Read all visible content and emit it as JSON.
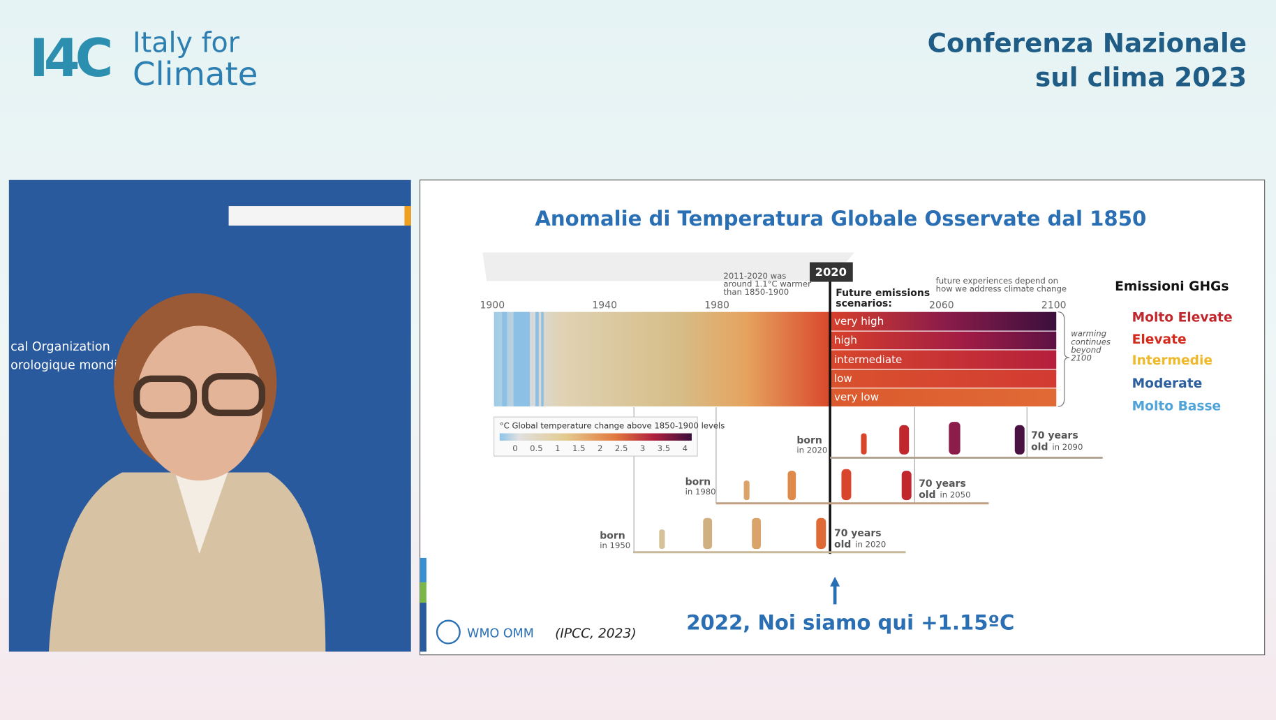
{
  "header": {
    "logo_mark": "I4C",
    "logo_line1": "Italy for",
    "logo_line2": "Climate",
    "title_line1": "Conferenza Nazionale",
    "title_line2": "sul clima 2023"
  },
  "speaker_panel": {
    "backdrop_line1": "cal Organization",
    "backdrop_line2": "orologique mondi"
  },
  "slide": {
    "title": "Anomalie di Temperatura Globale Osservate dal 1850",
    "marker_year": "2020",
    "note_left": [
      "2011-2020 was",
      "around 1.1°C warmer",
      "than 1850-1900"
    ],
    "note_right": [
      "future experiences depend on",
      "how we address climate change"
    ],
    "scenarios_heading": [
      "Future emissions",
      "scenarios:"
    ],
    "axis_years": [
      "1900",
      "1940",
      "1980",
      "2060",
      "2100"
    ],
    "scenarios": [
      "very high",
      "high",
      "intermediate",
      "low",
      "very low"
    ],
    "warming_note": [
      "warming",
      "continues",
      "beyond",
      "2100"
    ],
    "colorbar_title": "°C Global temperature change above 1850-1900 levels",
    "colorbar_ticks": [
      "0",
      "0.5",
      "1",
      "1.5",
      "2",
      "2.5",
      "3",
      "3.5",
      "4"
    ],
    "generations": [
      {
        "born": "born",
        "born_year": "in 2020",
        "age": "70 years",
        "age_word": "old",
        "age_year": "in 2090"
      },
      {
        "born": "born",
        "born_year": "in 1980",
        "age": "70 years",
        "age_word": "old",
        "age_year": "in 2050"
      },
      {
        "born": "born",
        "born_year": "in 1950",
        "age": "70 years",
        "age_word": "old",
        "age_year": "in 2020"
      }
    ],
    "legend_title": "Emissioni GHGs",
    "legend": [
      "Molto Elevate",
      "Elevate",
      "Intermedie",
      "Moderate",
      "Molto Basse"
    ],
    "source_logo": "WMO OMM",
    "citation": "(IPCC, 2023)",
    "caption": "2022, Noi siamo qui +1.15ºC"
  }
}
